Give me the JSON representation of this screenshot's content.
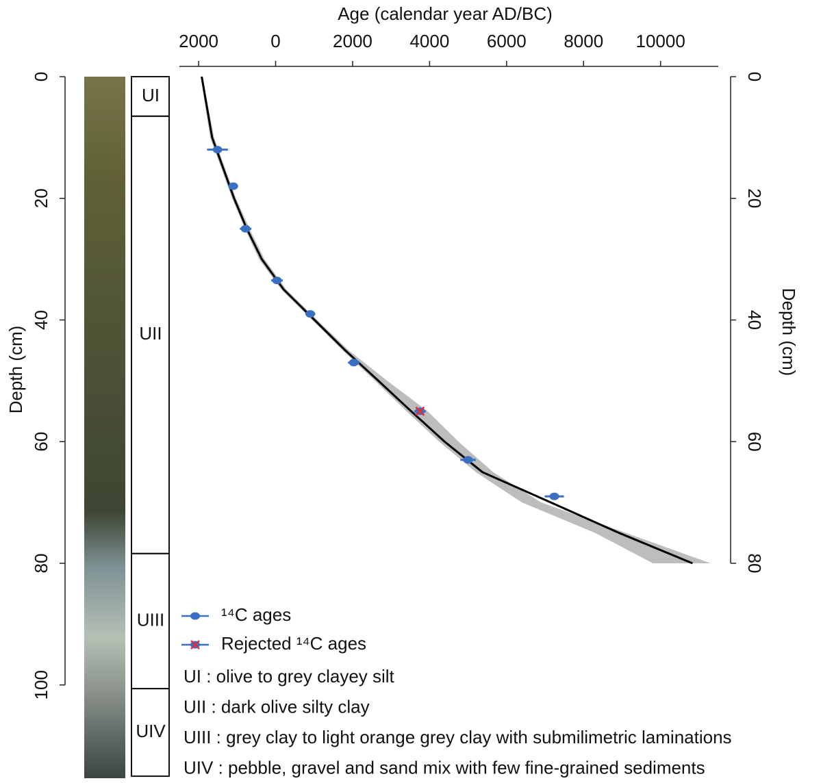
{
  "chart_data": {
    "type": "scatter",
    "x_label": "Age (calendar year AD/BC)",
    "y_label": "Depth (cm)",
    "y2_label": "Depth (cm)",
    "xlim": [
      -2500,
      11500
    ],
    "xticks": [
      {
        "value": -2000,
        "label": "2000"
      },
      0,
      2000,
      4000,
      6000,
      8000,
      10000
    ],
    "ylim": [
      0,
      115
    ],
    "yticks": [
      0,
      20,
      40,
      60,
      80,
      100
    ],
    "y2lim": [
      0,
      80
    ],
    "y2ticks": [
      0,
      20,
      40,
      60,
      80
    ],
    "series": [
      {
        "name": "¹⁴C ages",
        "color": "#3b6fc2",
        "x": [
          -1510,
          -1100,
          -780,
          35,
          900,
          2030,
          5000,
          7240
        ],
        "values": [
          12,
          18,
          25,
          33.5,
          39,
          47,
          63,
          69
        ],
        "errors": [
          270,
          100,
          150,
          150,
          130,
          150,
          200,
          250
        ]
      },
      {
        "name": "Rejected ¹⁴C ages",
        "color": "#e0303c",
        "x": [
          3750
        ],
        "values": [
          55
        ],
        "errors": [
          150
        ]
      }
    ],
    "model": {
      "color": "#000000",
      "x": [
        -1920,
        -1650,
        -1080,
        -750,
        -360,
        210,
        1010,
        1810,
        2670,
        3520,
        4390,
        5370,
        7150,
        8920,
        10830
      ],
      "values": [
        0,
        10,
        20,
        25,
        30,
        35,
        40,
        45,
        50,
        55,
        60,
        65,
        70,
        75,
        80
      ]
    },
    "band": {
      "color": "#bdbdbd",
      "values": [
        0,
        10,
        20,
        25,
        30,
        35,
        40,
        45,
        50,
        55,
        60,
        65,
        70,
        75,
        80
      ],
      "lower": [
        -1950,
        -1700,
        -1130,
        -800,
        -430,
        150,
        950,
        1740,
        2580,
        3400,
        4250,
        5200,
        6400,
        8300,
        9800
      ],
      "upper": [
        -1900,
        -1600,
        -1030,
        -680,
        -290,
        280,
        1080,
        1900,
        2900,
        3950,
        4750,
        5650,
        6900,
        9100,
        11300
      ]
    },
    "units": [
      {
        "label": "UI",
        "top": 0,
        "bottom": 6.5,
        "description": "UI : olive to grey clayey silt"
      },
      {
        "label": "UII",
        "top": 6.5,
        "bottom": 78.4,
        "description": "UII : dark olive silty clay"
      },
      {
        "label": "UIII",
        "top": 78.4,
        "bottom": 100.6,
        "description": "UIII : grey clay to light orange grey clay with submilimetric laminations"
      },
      {
        "label": "UIV",
        "top": 100.6,
        "bottom": 115,
        "description": "UIV : pebble, gravel and sand mix with few fine-grained sediments"
      }
    ]
  }
}
